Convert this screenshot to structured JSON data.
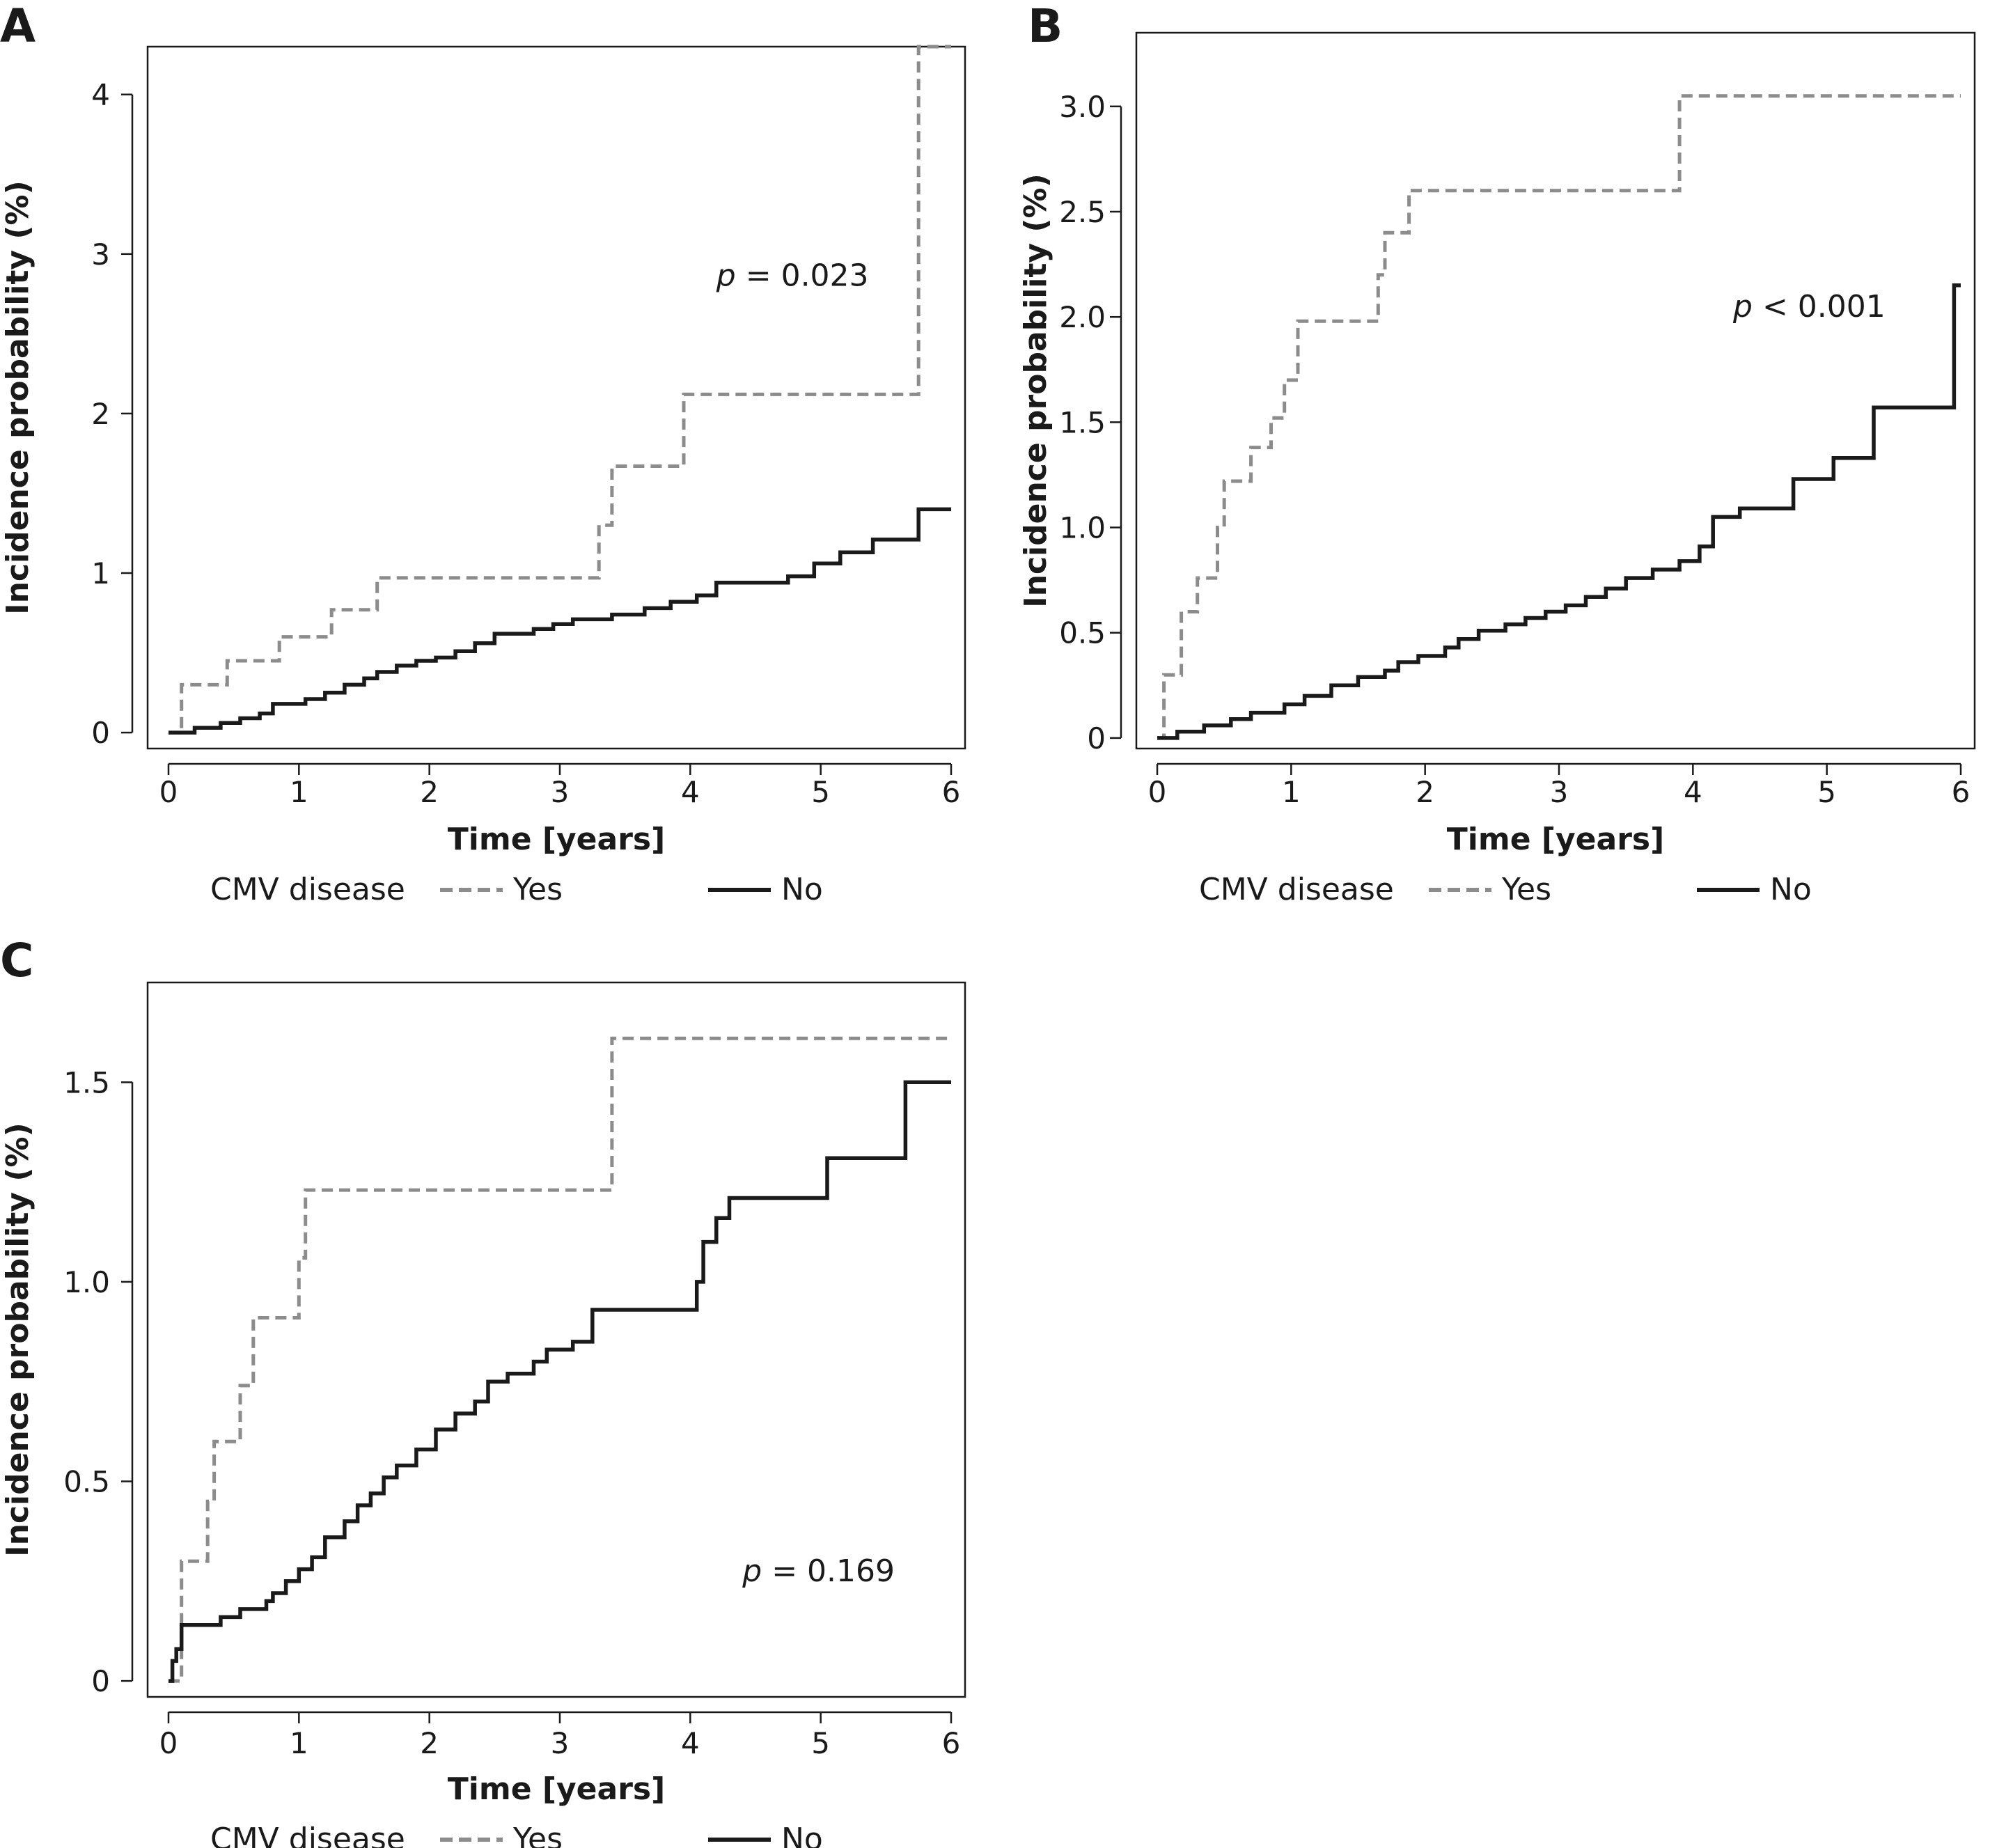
{
  "chart_data": [
    {
      "type": "line",
      "panel_label": "A",
      "xlabel": "Time [years]",
      "ylabel": "Incidence probability (%)",
      "xlim": [
        0,
        6
      ],
      "ylim": [
        -0.1,
        4.3
      ],
      "x_ticks": [
        0,
        1,
        2,
        3,
        4,
        5,
        6
      ],
      "x_tick_labels": [
        "0",
        "1",
        "2",
        "3",
        "4",
        "5",
        "6"
      ],
      "y_ticks": [
        0,
        1,
        2,
        3,
        4
      ],
      "y_tick_labels": [
        "0",
        "1",
        "2",
        "3",
        "4"
      ],
      "annotation": {
        "p": "p",
        "rest": " = 0.023",
        "x": 4.2,
        "y": 2.8
      },
      "legend": {
        "title": "CMV disease",
        "position": "bottom"
      },
      "series": [
        {
          "name": "Yes",
          "style": "dashed",
          "color": "#8c8c8c",
          "steps": [
            [
              0,
              0
            ],
            [
              0.1,
              0.3
            ],
            [
              0.45,
              0.45
            ],
            [
              0.85,
              0.6
            ],
            [
              1.25,
              0.77
            ],
            [
              1.6,
              0.97
            ],
            [
              3.3,
              1.3
            ],
            [
              3.4,
              1.67
            ],
            [
              3.95,
              2.12
            ],
            [
              5.75,
              4.3
            ],
            [
              6.0,
              4.3
            ]
          ]
        },
        {
          "name": "No",
          "style": "solid",
          "color": "#1a1a1a",
          "steps": [
            [
              0,
              0
            ],
            [
              0.2,
              0.03
            ],
            [
              0.4,
              0.06
            ],
            [
              0.55,
              0.09
            ],
            [
              0.7,
              0.12
            ],
            [
              0.8,
              0.18
            ],
            [
              1.05,
              0.21
            ],
            [
              1.2,
              0.25
            ],
            [
              1.35,
              0.3
            ],
            [
              1.5,
              0.34
            ],
            [
              1.6,
              0.38
            ],
            [
              1.75,
              0.42
            ],
            [
              1.9,
              0.45
            ],
            [
              2.05,
              0.47
            ],
            [
              2.2,
              0.51
            ],
            [
              2.35,
              0.56
            ],
            [
              2.5,
              0.62
            ],
            [
              2.8,
              0.65
            ],
            [
              2.95,
              0.68
            ],
            [
              3.1,
              0.71
            ],
            [
              3.4,
              0.74
            ],
            [
              3.65,
              0.78
            ],
            [
              3.85,
              0.82
            ],
            [
              4.05,
              0.86
            ],
            [
              4.2,
              0.94
            ],
            [
              4.75,
              0.98
            ],
            [
              4.95,
              1.06
            ],
            [
              5.15,
              1.13
            ],
            [
              5.4,
              1.21
            ],
            [
              5.75,
              1.4
            ],
            [
              6.0,
              1.4
            ]
          ]
        }
      ]
    },
    {
      "type": "line",
      "panel_label": "B",
      "xlabel": "Time [years]",
      "ylabel": "Incidence probability (%)",
      "xlim": [
        0,
        6
      ],
      "ylim": [
        -0.05,
        3.35
      ],
      "x_ticks": [
        0,
        1,
        2,
        3,
        4,
        5,
        6
      ],
      "x_tick_labels": [
        "0",
        "1",
        "2",
        "3",
        "4",
        "5",
        "6"
      ],
      "y_ticks": [
        0,
        0.5,
        1.0,
        1.5,
        2.0,
        2.5,
        3.0
      ],
      "y_tick_labels": [
        "0",
        "0.5",
        "1.0",
        "1.5",
        "2.0",
        "2.5",
        "3.0"
      ],
      "annotation": {
        "p": "p",
        "rest": " < 0.001",
        "x": 4.3,
        "y": 2.0
      },
      "legend": {
        "title": "CMV disease",
        "position": "bottom"
      },
      "series": [
        {
          "name": "Yes",
          "style": "dashed",
          "color": "#8c8c8c",
          "steps": [
            [
              0,
              0
            ],
            [
              0.05,
              0.3
            ],
            [
              0.18,
              0.6
            ],
            [
              0.3,
              0.76
            ],
            [
              0.45,
              1.0
            ],
            [
              0.5,
              1.22
            ],
            [
              0.7,
              1.38
            ],
            [
              0.85,
              1.52
            ],
            [
              0.95,
              1.7
            ],
            [
              1.05,
              1.98
            ],
            [
              1.65,
              2.2
            ],
            [
              1.7,
              2.4
            ],
            [
              1.88,
              2.6
            ],
            [
              3.9,
              3.05
            ],
            [
              6.0,
              3.05
            ]
          ]
        },
        {
          "name": "No",
          "style": "solid",
          "color": "#1a1a1a",
          "steps": [
            [
              0,
              0
            ],
            [
              0.15,
              0.03
            ],
            [
              0.35,
              0.06
            ],
            [
              0.55,
              0.09
            ],
            [
              0.7,
              0.12
            ],
            [
              0.95,
              0.16
            ],
            [
              1.1,
              0.2
            ],
            [
              1.3,
              0.25
            ],
            [
              1.5,
              0.29
            ],
            [
              1.7,
              0.32
            ],
            [
              1.8,
              0.36
            ],
            [
              1.95,
              0.39
            ],
            [
              2.15,
              0.43
            ],
            [
              2.25,
              0.47
            ],
            [
              2.4,
              0.51
            ],
            [
              2.6,
              0.54
            ],
            [
              2.75,
              0.57
            ],
            [
              2.9,
              0.6
            ],
            [
              3.05,
              0.63
            ],
            [
              3.2,
              0.67
            ],
            [
              3.35,
              0.71
            ],
            [
              3.5,
              0.76
            ],
            [
              3.7,
              0.8
            ],
            [
              3.9,
              0.84
            ],
            [
              4.05,
              0.91
            ],
            [
              4.15,
              1.05
            ],
            [
              4.35,
              1.09
            ],
            [
              4.75,
              1.23
            ],
            [
              5.05,
              1.33
            ],
            [
              5.35,
              1.57
            ],
            [
              5.95,
              2.15
            ],
            [
              6.0,
              2.15
            ]
          ]
        }
      ]
    },
    {
      "type": "line",
      "panel_label": "C",
      "xlabel": "Time [years]",
      "ylabel": "Incidence probability (%)",
      "xlim": [
        0,
        6
      ],
      "ylim": [
        -0.04,
        1.75
      ],
      "x_ticks": [
        0,
        1,
        2,
        3,
        4,
        5,
        6
      ],
      "x_tick_labels": [
        "0",
        "1",
        "2",
        "3",
        "4",
        "5",
        "6"
      ],
      "y_ticks": [
        0,
        0.5,
        1.0,
        1.5
      ],
      "y_tick_labels": [
        "0",
        "0.5",
        "1.0",
        "1.5"
      ],
      "annotation": {
        "p": "p",
        "rest": " = 0.169",
        "x": 4.4,
        "y": 0.25
      },
      "legend": {
        "title": "CMV disease",
        "position": "bottom"
      },
      "series": [
        {
          "name": "Yes",
          "style": "dashed",
          "color": "#8c8c8c",
          "steps": [
            [
              0,
              0
            ],
            [
              0.1,
              0.3
            ],
            [
              0.3,
              0.45
            ],
            [
              0.35,
              0.6
            ],
            [
              0.55,
              0.74
            ],
            [
              0.65,
              0.91
            ],
            [
              1.0,
              1.06
            ],
            [
              1.05,
              1.23
            ],
            [
              3.4,
              1.61
            ],
            [
              6.0,
              1.61
            ]
          ]
        },
        {
          "name": "No",
          "style": "solid",
          "color": "#1a1a1a",
          "steps": [
            [
              0,
              0
            ],
            [
              0.03,
              0.05
            ],
            [
              0.06,
              0.08
            ],
            [
              0.1,
              0.14
            ],
            [
              0.4,
              0.16
            ],
            [
              0.55,
              0.18
            ],
            [
              0.75,
              0.2
            ],
            [
              0.8,
              0.22
            ],
            [
              0.9,
              0.25
            ],
            [
              1.0,
              0.28
            ],
            [
              1.1,
              0.31
            ],
            [
              1.2,
              0.36
            ],
            [
              1.35,
              0.4
            ],
            [
              1.45,
              0.44
            ],
            [
              1.55,
              0.47
            ],
            [
              1.65,
              0.51
            ],
            [
              1.75,
              0.54
            ],
            [
              1.9,
              0.58
            ],
            [
              2.05,
              0.63
            ],
            [
              2.2,
              0.67
            ],
            [
              2.35,
              0.7
            ],
            [
              2.45,
              0.75
            ],
            [
              2.6,
              0.77
            ],
            [
              2.8,
              0.8
            ],
            [
              2.9,
              0.83
            ],
            [
              3.1,
              0.85
            ],
            [
              3.25,
              0.93
            ],
            [
              4.05,
              1.0
            ],
            [
              4.1,
              1.1
            ],
            [
              4.2,
              1.16
            ],
            [
              4.3,
              1.21
            ],
            [
              5.05,
              1.31
            ],
            [
              5.65,
              1.5
            ],
            [
              6.0,
              1.5
            ]
          ]
        }
      ]
    }
  ]
}
